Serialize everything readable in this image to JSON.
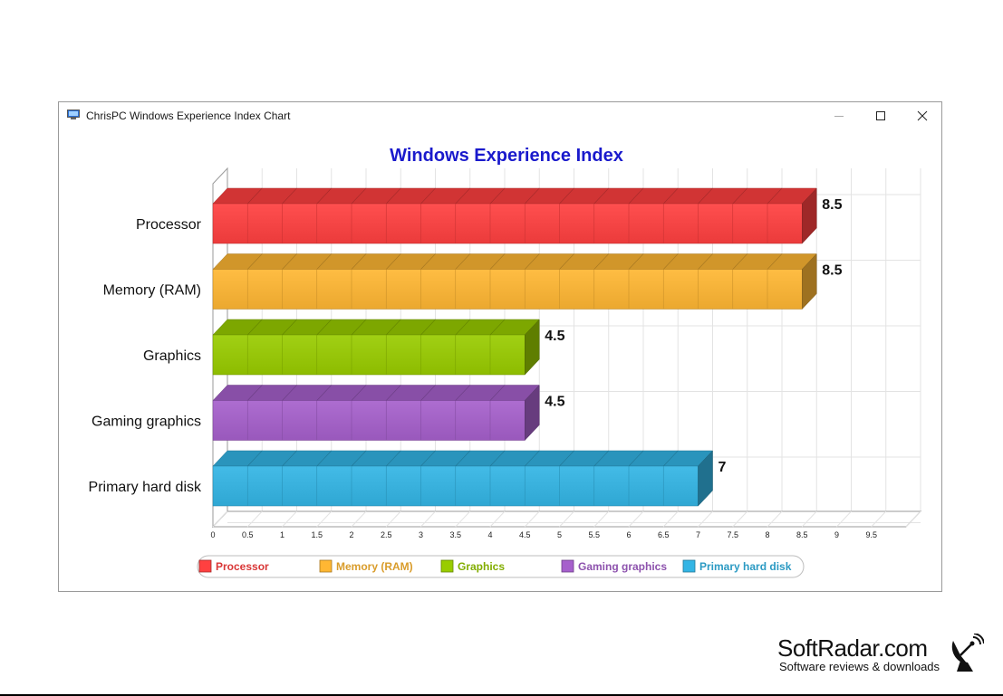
{
  "window": {
    "title": "ChrisPC Windows Experience Index Chart",
    "buttons": {
      "minimize": "minimize",
      "maximize": "maximize",
      "close": "close"
    }
  },
  "chart_data": {
    "type": "bar",
    "orientation": "horizontal",
    "title": "Windows Experience Index",
    "title_color": "#1a1acc",
    "categories": [
      "Processor",
      "Memory (RAM)",
      "Graphics",
      "Gaming graphics",
      "Primary hard disk"
    ],
    "values": [
      8.5,
      8.5,
      4.5,
      4.5,
      7
    ],
    "value_labels": [
      "8.5",
      "8.5",
      "4.5",
      "4.5",
      "7"
    ],
    "colors": [
      "#ff4040",
      "#ffb733",
      "#99cc00",
      "#a660cc",
      "#33b5e5"
    ],
    "xlim": [
      0,
      10
    ],
    "x_ticks": [
      "0",
      "0.5",
      "1",
      "1.5",
      "2",
      "2.5",
      "3",
      "3.5",
      "4",
      "4.5",
      "5",
      "5.5",
      "6",
      "6.5",
      "7",
      "7.5",
      "8",
      "8.5",
      "9",
      "9.5"
    ],
    "grid": true,
    "style": "3d",
    "legend": {
      "placement": "bottom",
      "entries": [
        "Processor",
        "Memory (RAM)",
        "Graphics",
        "Gaming graphics",
        "Primary hard disk"
      ]
    }
  },
  "branding": {
    "name": "SoftRadar.com",
    "tagline": "Software reviews & downloads"
  }
}
